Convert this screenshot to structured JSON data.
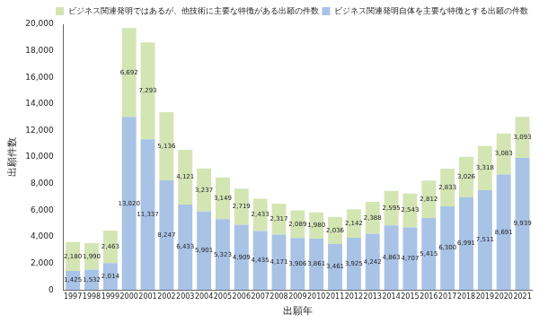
{
  "chart_data": {
    "type": "bar",
    "stacked": true,
    "data_labels": true,
    "grid": false,
    "legend": "upper right",
    "x_label": "出願年",
    "y_label": "出願件数",
    "categories": [
      "1997",
      "1998",
      "1999",
      "2000",
      "2001",
      "2002",
      "2003",
      "2004",
      "2005",
      "2006",
      "2007",
      "2008",
      "2009",
      "2010",
      "2011",
      "2012",
      "2013",
      "2014",
      "2015",
      "2016",
      "2017",
      "2018",
      "2019",
      "2020",
      "2021"
    ],
    "series": [
      {
        "name": "ビジネス関連発明自体を主要な特徴とする出願の件数",
        "color": "#a9c3e6",
        "values": [
          1425,
          1532,
          2014,
          13020,
          11337,
          8247,
          6433,
          5901,
          5323,
          4909,
          4435,
          4171,
          3906,
          3861,
          3461,
          3925,
          4242,
          4863,
          4707,
          5415,
          6300,
          6991,
          7511,
          8691,
          9939
        ],
        "value_labels": [
          "1,425",
          "1,532",
          "2,014",
          "13,020",
          "11,337",
          "8,247",
          "6,433",
          "5,901",
          "5,323",
          "4,909",
          "4,435",
          "4,171",
          "3,906",
          "3,861",
          "3,461",
          "3,925",
          "4,242",
          "4,863",
          "4,707",
          "5,415",
          "6,300",
          "6,991",
          "7,511",
          "8,691",
          "9,939"
        ]
      },
      {
        "name": "ビジネス関連発明ではあるが、他技術に主要な特徴がある出願の件数",
        "color": "#d4e5b4",
        "values": [
          2180,
          1990,
          2463,
          6692,
          7293,
          5136,
          4121,
          3237,
          3149,
          2719,
          2433,
          2317,
          2089,
          1980,
          2036,
          2142,
          2388,
          2595,
          2543,
          2812,
          2833,
          3026,
          3318,
          3083,
          3093
        ],
        "value_labels": [
          "2,180",
          "1,990",
          "2,463",
          "6,692",
          "7,293",
          "5,136",
          "4,121",
          "3,237",
          "3,149",
          "2,719",
          "2,433",
          "2,317",
          "2,089",
          "1,980",
          "2,036",
          "2,142",
          "2,388",
          "2,595",
          "2,543",
          "2,812",
          "2,833",
          "3,026",
          "3,318",
          "3,083",
          "3,093"
        ]
      }
    ],
    "ylim": [
      0,
      20000
    ],
    "yticks": [
      0,
      {
        "value": 2000,
        "label": "2,000"
      },
      {
        "value": 4000,
        "label": "4,000"
      },
      {
        "value": 6000,
        "label": "6,000"
      },
      {
        "value": 8000,
        "label": "8,000"
      },
      {
        "value": 10000,
        "label": "10,000"
      },
      {
        "value": 12000,
        "label": "12,000"
      },
      {
        "value": 14000,
        "label": "14,000"
      },
      {
        "value": 16000,
        "label": "16,000"
      },
      {
        "value": 18000,
        "label": "18,000"
      },
      {
        "value": 20000,
        "label": "20,000"
      }
    ]
  }
}
